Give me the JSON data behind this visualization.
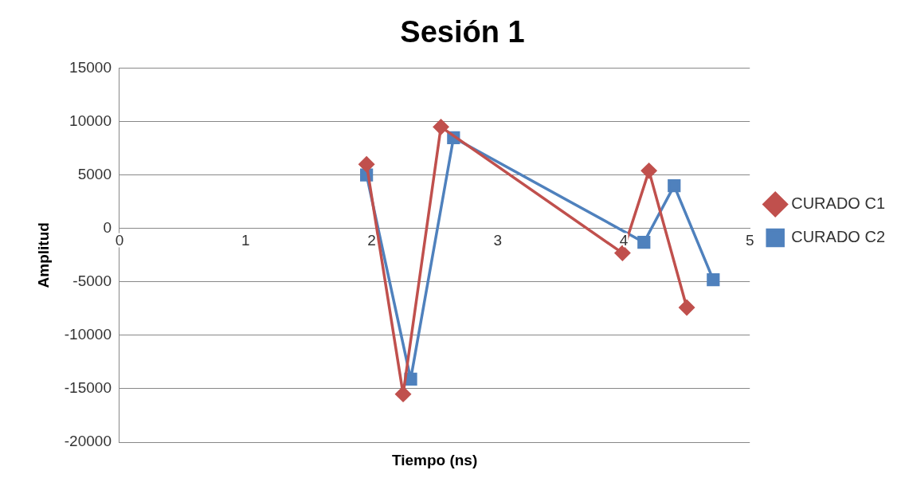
{
  "chart_data": {
    "type": "scatter",
    "title": "Sesión 1",
    "xlabel": "Tiempo (ns)",
    "ylabel": "Amplitud",
    "xlim": [
      0,
      5
    ],
    "xticks": [
      0,
      1,
      2,
      3,
      4,
      5
    ],
    "ylim": [
      -20000,
      15000
    ],
    "yticks": [
      -20000,
      -15000,
      -10000,
      -5000,
      0,
      5000,
      10000,
      15000
    ],
    "grid": "y",
    "legend": "right",
    "line_style": "solid",
    "series": [
      {
        "name": "CURADO C1",
        "color": "#c0504d",
        "type": "line",
        "marker": "diamond",
        "x": [
          1.96,
          2.25,
          2.55,
          3.99,
          4.2,
          4.5
        ],
        "values": [
          6000,
          -15500,
          9500,
          -2300,
          5400,
          -7400
        ]
      },
      {
        "name": "CURADO C2",
        "color": "#4f81bd",
        "type": "line",
        "marker": "square",
        "x": [
          1.96,
          2.31,
          2.65,
          4.16,
          4.4,
          4.71
        ],
        "values": [
          5000,
          -14100,
          8500,
          -1300,
          4000,
          -4800
        ]
      }
    ]
  }
}
